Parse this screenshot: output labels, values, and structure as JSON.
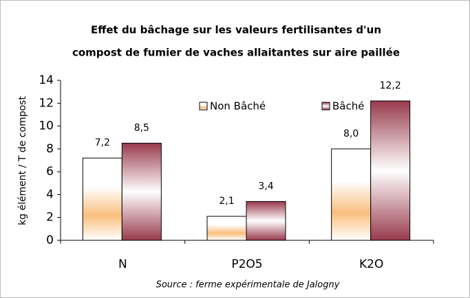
{
  "chart_data": {
    "type": "bar",
    "title": [
      "Effet du bâchage sur les valeurs fertilisantes d'un",
      "compost de fumier de vaches allaitantes sur aire paillée"
    ],
    "y_label": "kg élément / T de compost",
    "source": "Source : ferme expérimentale de Jalogny",
    "categories": [
      "N",
      "P2O5",
      "K2O"
    ],
    "series": [
      {
        "name": "Non Bâché",
        "color": "#f9bf7f",
        "values": [
          7.2,
          2.1,
          8.0
        ],
        "value_labels": [
          "7,2",
          "2,1",
          "8,0"
        ]
      },
      {
        "name": "Bâché",
        "color": "#983a4c",
        "values": [
          8.5,
          3.4,
          12.2
        ],
        "value_labels": [
          "8,5",
          "3,4",
          "12,2"
        ]
      }
    ],
    "ylim": [
      0,
      14
    ],
    "yticks": [
      0,
      2,
      4,
      6,
      8,
      10,
      12,
      14
    ],
    "grid": false
  }
}
